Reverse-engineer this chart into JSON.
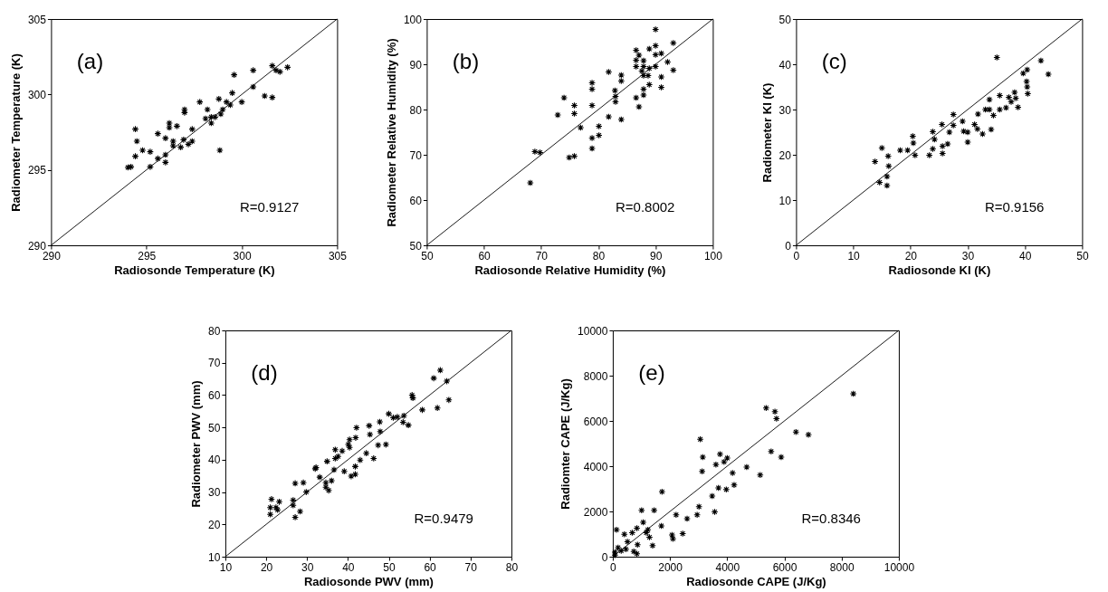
{
  "chart_data": [
    {
      "type": "scatter",
      "xlabel": "Radiosonde Temperature (K)",
      "ylabel": "Radiometer Temperature (K)",
      "xlim": [
        290,
        305
      ],
      "ylim": [
        290,
        305
      ],
      "xticks": [
        290,
        295,
        300,
        305
      ],
      "yticks": [
        290,
        295,
        300,
        305
      ],
      "marker": "cross",
      "annotations": [
        "(a)",
        "R=0.9127"
      ],
      "series": [
        {
          "color": "#000000",
          "x": [
            294.03,
            294.19,
            294.42,
            294.42,
            294.5,
            294.8,
            295.2,
            295.2,
            295.6,
            296.0,
            296.0,
            295.6,
            296.0,
            296.2,
            296.2,
            296.6,
            296.4,
            296.4,
            296.8,
            296.95,
            297.0,
            297.0,
            297.2,
            297.4,
            297.4,
            297.8,
            298.2,
            298.1,
            298.4,
            298.4,
            298.6,
            298.8,
            298.85,
            298.9,
            299.0,
            299.2,
            299.4,
            299.5,
            299.6,
            300.0,
            300.6,
            300.6,
            301.2,
            301.6,
            301.6,
            301.8,
            302.0,
            302.4
          ],
          "values": [
            295.16,
            295.2,
            297.7,
            295.9,
            296.9,
            296.3,
            296.2,
            295.2,
            295.75,
            295.5,
            296.0,
            297.4,
            297.1,
            298.1,
            297.8,
            297.9,
            296.9,
            296.6,
            296.5,
            297.0,
            299.0,
            298.8,
            296.7,
            297.7,
            296.9,
            299.5,
            299.0,
            298.4,
            298.5,
            298.1,
            298.5,
            299.7,
            296.3,
            298.7,
            299.0,
            299.5,
            299.3,
            300.1,
            301.3,
            299.5,
            300.5,
            301.6,
            299.9,
            301.9,
            299.8,
            301.6,
            301.5,
            301.8
          ]
        },
        {
          "type": "line",
          "marker": "none",
          "color": "#000000",
          "x": [
            290,
            305
          ],
          "values": [
            290,
            305
          ]
        }
      ]
    },
    {
      "type": "scatter",
      "xlabel": "Radiosonde Relative Humidity (%)",
      "ylabel": "Radiometer Relative Humidity (%)",
      "xlim": [
        50,
        100
      ],
      "ylim": [
        50,
        100
      ],
      "xticks": [
        50,
        60,
        70,
        80,
        90,
        100
      ],
      "yticks": [
        50,
        60,
        70,
        80,
        90,
        100
      ],
      "marker": "cross",
      "annotations": [
        "(b)",
        "R=0.8002"
      ],
      "series": [
        {
          "color": "#000000",
          "x": [
            68.1,
            68.9,
            69.8,
            72.9,
            74.0,
            74.9,
            75.8,
            75.8,
            75.8,
            76.9,
            78.9,
            78.9,
            78.9,
            78.9,
            78.9,
            80.1,
            80.1,
            81.8,
            81.8,
            82.9,
            83.0,
            83.0,
            84.0,
            84.0,
            84.0,
            86.6,
            86.6,
            86.6,
            86.6,
            87.1,
            87.1,
            87.6,
            87.9,
            87.9,
            87.9,
            87.9,
            87.9,
            88.9,
            88.9,
            88.9,
            90.0,
            90.0,
            90.0,
            90.0,
            91.0,
            91.0,
            91.0,
            92.1,
            93.1,
            93.1,
            88.7
          ],
          "values": [
            63.8,
            70.7,
            70.5,
            78.8,
            82.6,
            69.4,
            69.7,
            80.9,
            79.1,
            76.0,
            85.9,
            84.5,
            80.9,
            73.7,
            71.4,
            76.3,
            74.3,
            88.3,
            78.4,
            84.2,
            82.9,
            81.7,
            87.6,
            86.3,
            77.8,
            93.1,
            90.9,
            89.5,
            82.6,
            92.0,
            80.6,
            88.5,
            90.8,
            89.5,
            87.5,
            84.5,
            83.2,
            93.4,
            89.1,
            85.5,
            97.7,
            94.1,
            92.1,
            89.5,
            92.4,
            87.2,
            84.9,
            90.5,
            94.7,
            88.7,
            87.5
          ]
        },
        {
          "type": "line",
          "marker": "none",
          "color": "#000000",
          "x": [
            50,
            100
          ],
          "values": [
            50,
            100
          ]
        }
      ]
    },
    {
      "type": "scatter",
      "xlabel": "Radiosonde KI (K)",
      "ylabel": "Radiometer KI (K)",
      "xlim": [
        0,
        50
      ],
      "ylim": [
        0,
        50
      ],
      "xticks": [
        0,
        10,
        20,
        30,
        40,
        50
      ],
      "yticks": [
        0,
        10,
        20,
        30,
        40,
        50
      ],
      "marker": "cross",
      "annotations": [
        "(c)",
        "R=0.9156"
      ],
      "series": [
        {
          "color": "#000000",
          "x": [
            13.8,
            14.6,
            15.0,
            15.9,
            15.9,
            16.1,
            16.2,
            18.2,
            19.5,
            20.4,
            20.5,
            20.8,
            23.3,
            23.9,
            23.9,
            24.2,
            25.5,
            25.6,
            25.6,
            26.5,
            26.8,
            27.5,
            27.5,
            29.1,
            29.3,
            30.0,
            30.0,
            31.2,
            31.7,
            31.8,
            32.6,
            33.1,
            33.8,
            33.8,
            34.1,
            34.5,
            35.1,
            35.6,
            35.6,
            36.7,
            37.2,
            37.6,
            38.2,
            38.4,
            38.8,
            39.7,
            40.4,
            40.3,
            40.5,
            40.4,
            42.8,
            44.1
          ],
          "values": [
            18.5,
            13.9,
            21.5,
            15.2,
            13.2,
            19.7,
            17.5,
            21.0,
            21.0,
            24.1,
            22.6,
            19.9,
            19.9,
            25.1,
            21.3,
            23.4,
            26.7,
            21.9,
            20.3,
            22.4,
            25.0,
            26.5,
            28.9,
            27.4,
            25.2,
            25.0,
            22.8,
            26.7,
            25.7,
            29.0,
            24.6,
            30.0,
            32.2,
            30.0,
            25.6,
            28.7,
            41.5,
            30.0,
            33.1,
            30.4,
            32.7,
            31.7,
            33.8,
            32.5,
            30.5,
            38.0,
            38.8,
            36.2,
            33.5,
            35.0,
            40.8,
            37.8
          ]
        },
        {
          "type": "line",
          "marker": "none",
          "color": "#000000",
          "x": [
            0,
            50
          ],
          "values": [
            0,
            50
          ]
        }
      ]
    },
    {
      "type": "scatter",
      "xlabel": "Radiosonde PWV (mm)",
      "ylabel": "Radiometer PWV (mm)",
      "xlim": [
        10,
        80
      ],
      "ylim": [
        10,
        80
      ],
      "xticks": [
        10,
        20,
        30,
        40,
        50,
        60,
        70,
        80
      ],
      "yticks": [
        10,
        20,
        30,
        40,
        50,
        60,
        70,
        80
      ],
      "marker": "cross",
      "annotations": [
        "(d)",
        "R=0.9479"
      ],
      "series": [
        {
          "color": "#000000",
          "x": [
            21.0,
            21.0,
            21.3,
            22.4,
            22.8,
            23.2,
            26.6,
            26.6,
            27.1,
            28.3,
            27.1,
            29.1,
            29.8,
            32.0,
            32.2,
            33.1,
            34.6,
            34.6,
            34.9,
            35.3,
            36.0,
            36.6,
            36.9,
            36.9,
            37.6,
            38.6,
            39.1,
            40.1,
            40.4,
            40.4,
            40.8,
            41.8,
            41.8,
            41.9,
            42.1,
            43.0,
            44.5,
            45.2,
            45.4,
            46.3,
            47.4,
            47.8,
            47.9,
            49.3,
            50.0,
            51.1,
            52.1,
            53.7,
            53.5,
            54.8,
            55.7,
            55.9,
            58.2,
            61.0,
            62.6,
            61.9,
            64.2,
            64.7
          ],
          "values": [
            23.1,
            25.2,
            27.8,
            25.2,
            24.5,
            27.0,
            27.5,
            25.9,
            22.2,
            24.0,
            32.7,
            32.9,
            30.0,
            37.2,
            37.6,
            34.6,
            32.9,
            31.5,
            39.5,
            30.5,
            33.5,
            36.9,
            43.1,
            40.4,
            41.0,
            42.7,
            36.4,
            44.7,
            46.2,
            43.8,
            34.9,
            37.9,
            35.5,
            46.8,
            49.9,
            39.9,
            42.0,
            50.5,
            47.8,
            40.4,
            44.5,
            51.7,
            48.7,
            44.7,
            54.2,
            53.0,
            53.2,
            53.6,
            51.6,
            50.7,
            60.0,
            59.1,
            55.4,
            65.2,
            67.7,
            56.0,
            64.3,
            58.5
          ]
        },
        {
          "type": "line",
          "marker": "none",
          "color": "#000000",
          "x": [
            10,
            80
          ],
          "values": [
            10,
            80
          ]
        }
      ]
    },
    {
      "type": "scatter",
      "xlabel": "Radiosonde CAPE (J/Kg)",
      "ylabel": "Radiomter CAPE (J/Kg)",
      "xlim": [
        0,
        10000
      ],
      "ylim": [
        0,
        10000
      ],
      "xticks": [
        0,
        2000,
        4000,
        6000,
        8000,
        10000
      ],
      "yticks": [
        0,
        2000,
        4000,
        6000,
        8000,
        10000
      ],
      "marker": "cross",
      "annotations": [
        "(e)",
        "R=0.8346"
      ],
      "series": [
        {
          "color": "#000000",
          "x": [
            77,
            132,
            77,
            186,
            296,
            406,
            461,
            515,
            680,
            735,
            844,
            844,
            866,
            1009,
            1064,
            1173,
            1228,
            1283,
            1393,
            1447,
            1700,
            1722,
            2072,
            2105,
            2215,
            2445,
            2599,
            2950,
            3015,
            3059,
            3147,
            3125,
            3476,
            3564,
            3607,
            3695,
            3750,
            3892,
            3969,
            4002,
            4189,
            4243,
            4682,
            5154,
            5362,
            5669,
            5724,
            5537,
            5888,
            6404,
            6842,
            8410
          ],
          "values": [
            200,
            1190,
            70,
            400,
            260,
            990,
            330,
            660,
            1060,
            230,
            1260,
            130,
            530,
            2050,
            1520,
            1060,
            1190,
            860,
            490,
            2050,
            1360,
            2870,
            960,
            790,
            1850,
            1020,
            1680,
            1850,
            2210,
            5190,
            4400,
            3770,
            2680,
            1980,
            4070,
            3040,
            4530,
            4190,
            2970,
            4360,
            3700,
            3170,
            3960,
            3610,
            6570,
            6410,
            6100,
            4650,
            4400,
            5510,
            5390,
            7200
          ]
        },
        {
          "type": "line",
          "marker": "none",
          "color": "#000000",
          "x": [
            0,
            10000
          ],
          "values": [
            0,
            10000
          ]
        }
      ]
    }
  ]
}
